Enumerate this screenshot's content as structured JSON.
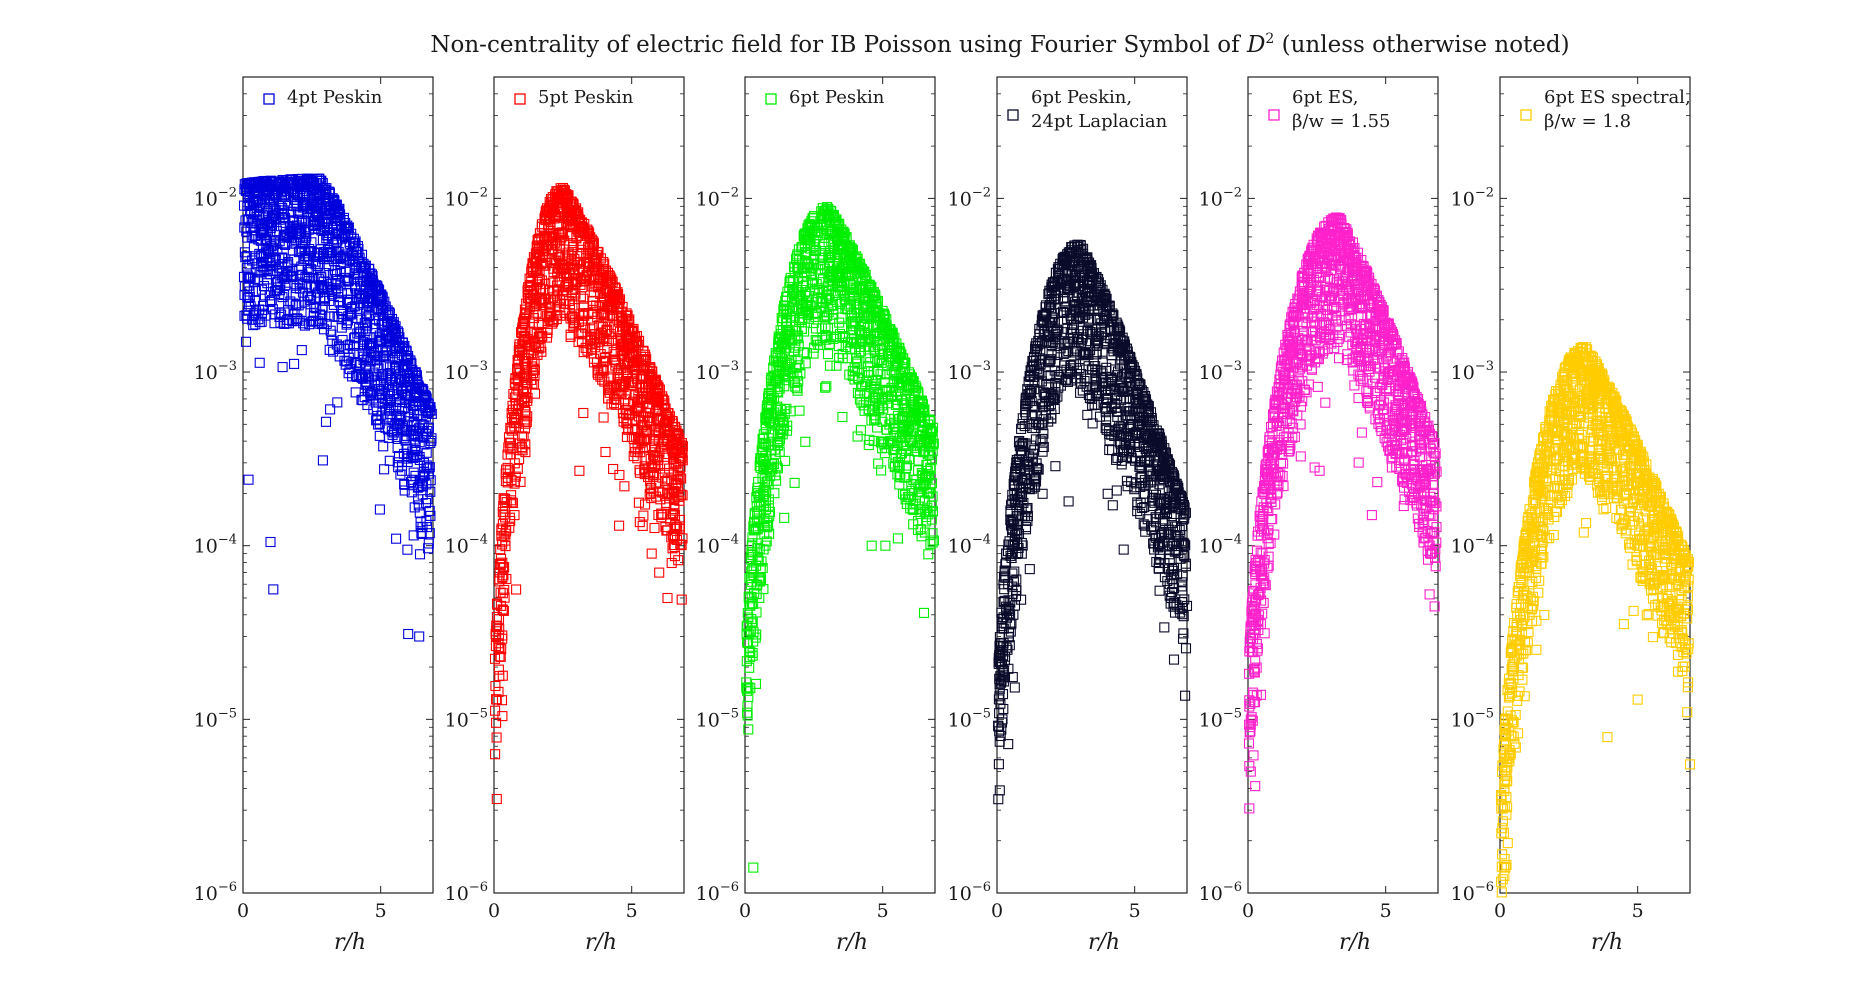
{
  "figure": {
    "title_main": "Non-centrality of electric field for IB Poisson using Fourier Symbol of ",
    "title_math": "D",
    "title_sup": "2",
    "title_tail": " (unless otherwise noted)"
  },
  "chart_data": [
    {
      "type": "scatter",
      "legend": [
        "4pt Peskin"
      ],
      "color": "#0000dd",
      "xlabel": "r/h",
      "x_ticks": [
        "0",
        "5"
      ],
      "y_scale": "log",
      "y_tick_base": "10",
      "y_tick_exps": [
        "−6",
        "−5",
        "−4",
        "−3",
        "−2"
      ],
      "xlim": [
        0,
        6.9
      ],
      "ylim": [
        1e-06,
        0.05
      ],
      "profile": {
        "peak_x": 2.8,
        "peak_y": 0.013,
        "rise": 1.6,
        "fall": 1.35,
        "width": 0.85,
        "near_zero_y": 0.012
      },
      "outliers": [
        [
          1.0,
          0.000105
        ],
        [
          1.1,
          5.6e-05
        ],
        [
          6.0,
          3.1e-05
        ],
        [
          6.4,
          3e-05
        ],
        [
          0.2,
          0.00024
        ],
        [
          2.9,
          0.00031
        ]
      ]
    },
    {
      "type": "scatter",
      "legend": [
        "5pt Peskin"
      ],
      "color": "#ff0000",
      "xlabel": "r/h",
      "x_ticks": [
        "0",
        "5"
      ],
      "y_scale": "log",
      "y_tick_base": "10",
      "y_tick_exps": [
        "−6",
        "−5",
        "−4",
        "−3",
        "−2"
      ],
      "xlim": [
        0,
        6.9
      ],
      "ylim": [
        1e-06,
        0.05
      ],
      "profile": {
        "peak_x": 2.5,
        "peak_y": 0.0115,
        "rise": 2.0,
        "fall": 1.5,
        "width": 0.75,
        "near_zero_y": 1.2e-05
      },
      "outliers": [
        [
          0.1,
          1.3e-05
        ],
        [
          0.2,
          2.6e-05
        ],
        [
          3.1,
          0.00027
        ],
        [
          5.4,
          0.00013
        ],
        [
          6.3,
          5e-05
        ],
        [
          6.0,
          7e-05
        ]
      ]
    },
    {
      "type": "scatter",
      "legend": [
        "6pt Peskin"
      ],
      "color": "#00ee00",
      "xlabel": "r/h",
      "x_ticks": [
        "0",
        "5"
      ],
      "y_scale": "log",
      "y_tick_base": "10",
      "y_tick_exps": [
        "−6",
        "−5",
        "−4",
        "−3",
        "−2"
      ],
      "xlim": [
        0,
        6.9
      ],
      "ylim": [
        1e-06,
        0.05
      ],
      "profile": {
        "peak_x": 3.0,
        "peak_y": 0.009,
        "rise": 1.9,
        "fall": 1.3,
        "width": 0.8,
        "near_zero_y": 1.6e-05
      },
      "outliers": [
        [
          0.3,
          1.4e-06
        ],
        [
          0.4,
          1.6e-05
        ],
        [
          6.5,
          4.1e-05
        ],
        [
          5.1,
          0.0001
        ],
        [
          4.6,
          0.0001
        ],
        [
          1.8,
          0.00023
        ]
      ]
    },
    {
      "type": "scatter",
      "legend": [
        "6pt Peskin,",
        "24pt Laplacian"
      ],
      "color": "#0a0a2a",
      "xlabel": "r/h",
      "x_ticks": [
        "0",
        "5"
      ],
      "y_scale": "log",
      "y_tick_base": "10",
      "y_tick_exps": [
        "−6",
        "−5",
        "−4",
        "−3",
        "−2"
      ],
      "xlim": [
        0,
        6.9
      ],
      "ylim": [
        1e-06,
        0.05
      ],
      "profile": {
        "peak_x": 3.0,
        "peak_y": 0.0055,
        "rise": 2.1,
        "fall": 1.55,
        "width": 0.8,
        "near_zero_y": 1e-05
      },
      "outliers": [
        [
          0.2,
          1e-05
        ],
        [
          0.1,
          1.5e-05
        ],
        [
          0.5,
          3.2e-05
        ],
        [
          6.9,
          4.5e-05
        ],
        [
          4.6,
          9.5e-05
        ],
        [
          2.6,
          0.00018
        ]
      ]
    },
    {
      "type": "scatter",
      "legend": [
        "6pt ES,",
        "β/w = 1.55"
      ],
      "color": "#ff22cc",
      "xlabel": "r/h",
      "x_ticks": [
        "0",
        "5"
      ],
      "y_scale": "log",
      "y_tick_base": "10",
      "y_tick_exps": [
        "−6",
        "−5",
        "−4",
        "−3",
        "−2"
      ],
      "xlim": [
        0,
        6.9
      ],
      "ylim": [
        1e-06,
        0.05
      ],
      "profile": {
        "peak_x": 3.3,
        "peak_y": 0.0078,
        "rise": 2.0,
        "fall": 1.35,
        "width": 0.75,
        "near_zero_y": 1.3e-05
      },
      "outliers": [
        [
          0.1,
          5e-06
        ],
        [
          0.2,
          6.2e-06
        ],
        [
          4.5,
          0.00015
        ],
        [
          6.6,
          0.0001
        ],
        [
          2.6,
          0.00027
        ],
        [
          1.5,
          0.00035
        ]
      ]
    },
    {
      "type": "scatter",
      "legend": [
        "6pt ES spectral,",
        "β/w = 1.8"
      ],
      "color": "#ffcc00",
      "xlabel": "r/h",
      "x_ticks": [
        "0",
        "5"
      ],
      "y_scale": "log",
      "y_tick_base": "10",
      "y_tick_exps": [
        "−6",
        "−5",
        "−4",
        "−3",
        "−2"
      ],
      "xlim": [
        0,
        6.9
      ],
      "ylim": [
        1e-06,
        0.05
      ],
      "profile": {
        "peak_x": 3.1,
        "peak_y": 0.0014,
        "rise": 2.1,
        "fall": 1.25,
        "width": 0.75,
        "near_zero_y": 2e-06
      },
      "outliers": [
        [
          0.1,
          1.2e-06
        ],
        [
          0.2,
          1.4e-06
        ],
        [
          3.9,
          7.9e-06
        ],
        [
          5.0,
          1.3e-05
        ],
        [
          6.9,
          5.5e-06
        ],
        [
          6.8,
          1.1e-05
        ]
      ]
    }
  ]
}
